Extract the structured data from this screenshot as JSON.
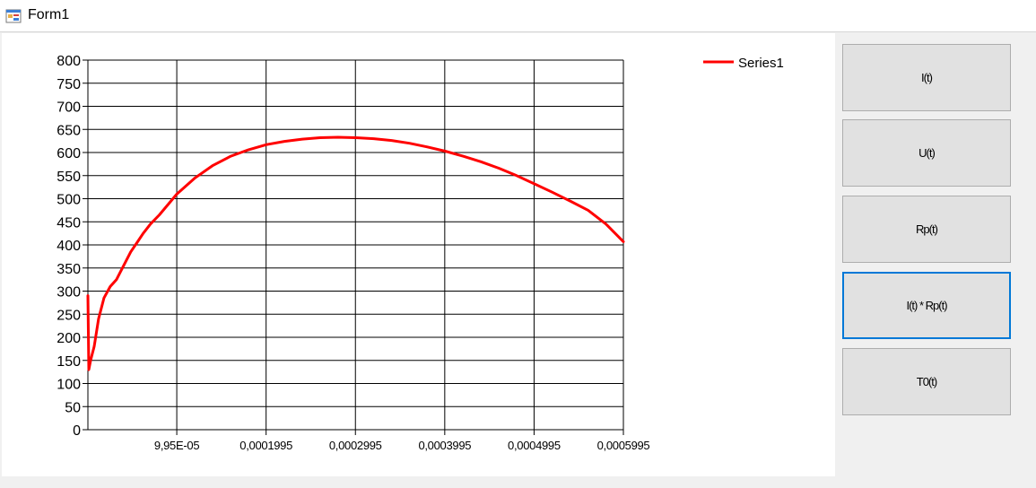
{
  "window": {
    "title": "Form1",
    "icon": "winforms-app-icon"
  },
  "buttons": [
    {
      "label": "I(t)",
      "focused": false
    },
    {
      "label": "U(t)",
      "focused": false
    },
    {
      "label": "Rp(t)",
      "focused": false
    },
    {
      "label": "I(t) * Rp(t)",
      "focused": true
    },
    {
      "label": "T0(t)",
      "focused": false
    }
  ],
  "chart_data": {
    "type": "line",
    "legend": "top-right",
    "grid": true,
    "ylim": [
      0,
      800
    ],
    "xlim": [
      0,
      0.0005995
    ],
    "y_ticks": [
      "0",
      "50",
      "100",
      "150",
      "200",
      "250",
      "300",
      "350",
      "400",
      "450",
      "500",
      "550",
      "600",
      "650",
      "700",
      "750",
      "800"
    ],
    "x_ticks": [
      "9,95E-05",
      "0,0001995",
      "0,0002995",
      "0,0003995",
      "0,0004995",
      "0,0005995"
    ],
    "x_tick_values": [
      9.95e-05,
      0.0001995,
      0.0002995,
      0.0003995,
      0.0004995,
      0.0005995
    ],
    "series": [
      {
        "name": "Series1",
        "color": "#ff0000",
        "x": [
          0,
          5e-07,
          1e-06,
          3e-06,
          7e-06,
          1.2e-05,
          1.8e-05,
          2.5e-05,
          3.2e-05,
          4e-05,
          4.8e-05,
          5.5e-05,
          6.2e-05,
          7e-05,
          8e-05,
          9.95e-05,
          0.00012,
          0.00014,
          0.00016,
          0.00018,
          0.0002,
          0.00022,
          0.00024,
          0.00026,
          0.00028,
          0.0003,
          0.00032,
          0.00034,
          0.00036,
          0.00038,
          0.0004,
          0.00042,
          0.00044,
          0.00046,
          0.00048,
          0.0005,
          0.00052,
          0.00054,
          0.00056,
          0.00058,
          0.0005995
        ],
        "y": [
          290,
          210,
          130,
          150,
          180,
          240,
          285,
          310,
          325,
          355,
          385,
          405,
          425,
          445,
          465,
          510,
          545,
          572,
          592,
          606,
          617,
          624,
          629,
          632,
          633,
          632,
          630,
          626,
          620,
          612,
          603,
          592,
          580,
          566,
          550,
          532,
          514,
          495,
          475,
          445,
          407
        ]
      }
    ]
  }
}
